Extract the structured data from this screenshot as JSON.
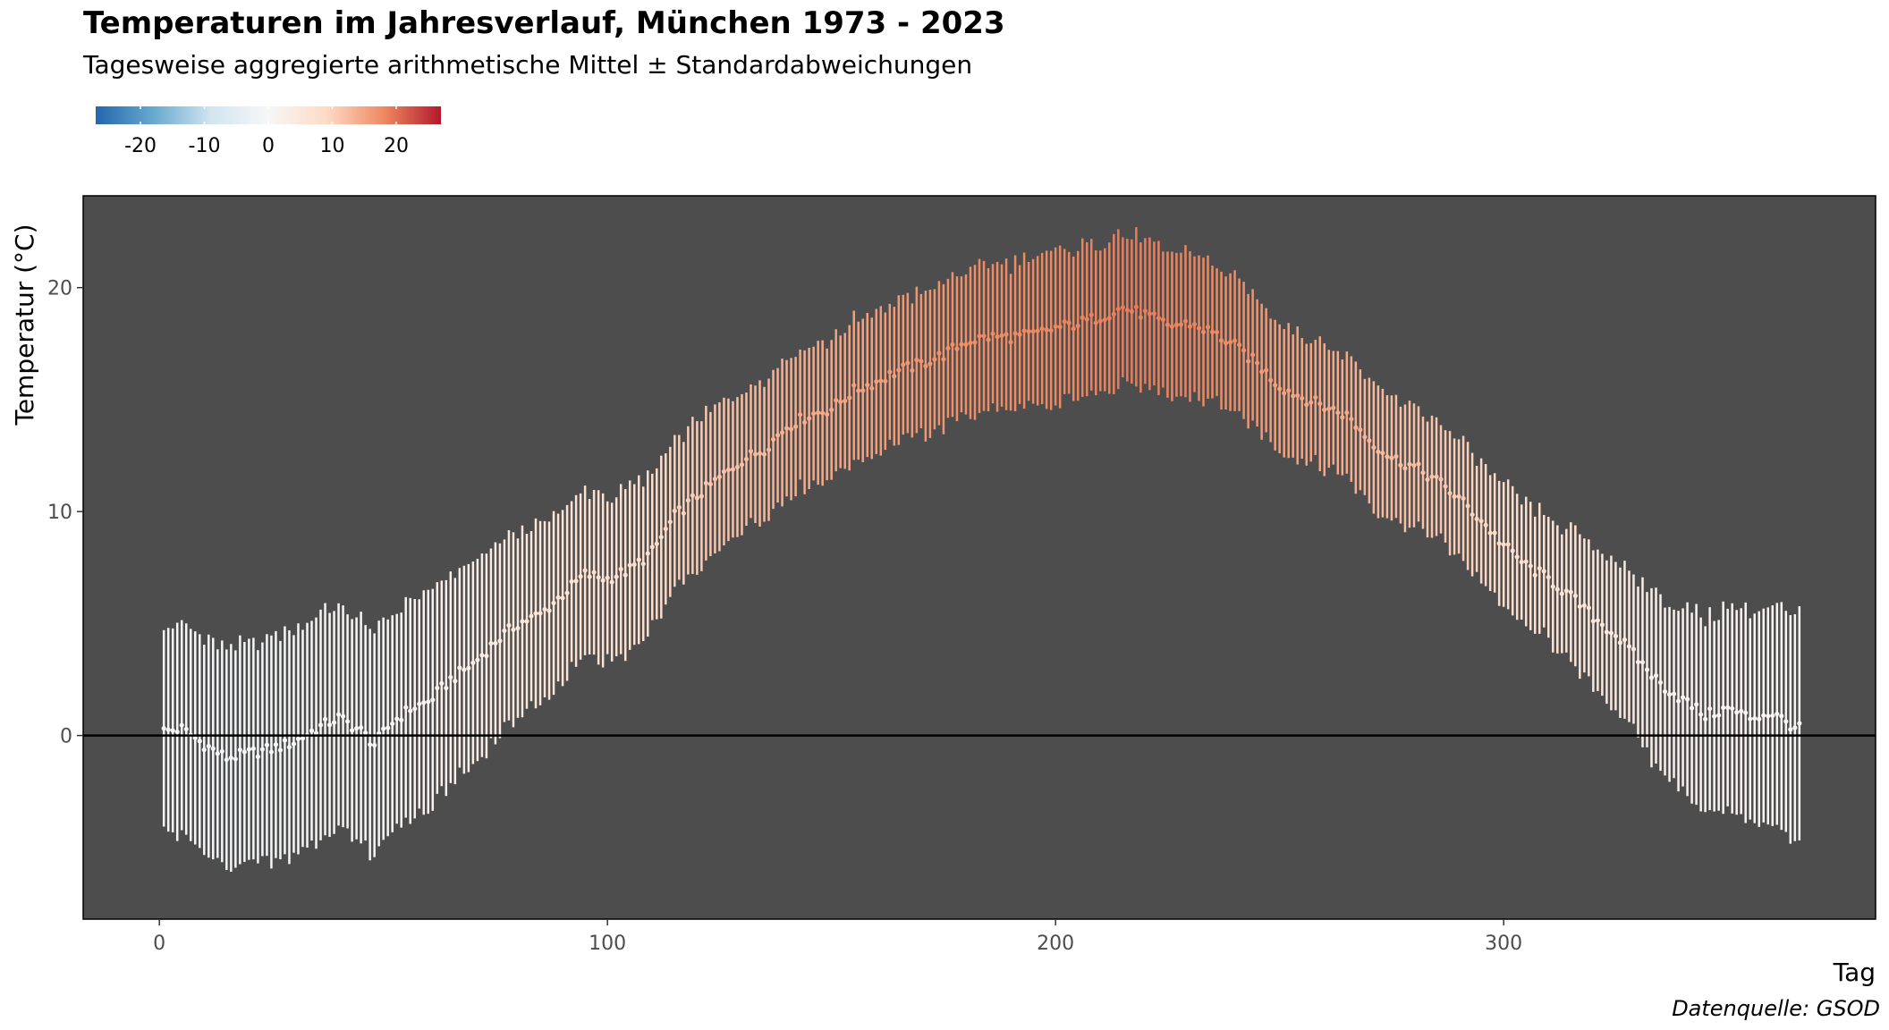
{
  "chart_data": {
    "type": "errorbar",
    "title": "Temperaturen im Jahresverlauf, München 1973 - 2023",
    "subtitle": "Tagesweise aggregierte arithmetische Mittel ± Standardabweichungen",
    "xlabel": "Tag",
    "ylabel": "Temperatur (°C)",
    "caption": "Datenquelle: GSOD",
    "xlim": [
      -17,
      383
    ],
    "ylim": [
      -8.2,
      24.1
    ],
    "x_ticks": [
      0,
      100,
      200,
      300
    ],
    "y_ticks": [
      0,
      10,
      20
    ],
    "reference_line_y": 0,
    "grid": false,
    "panel_background": "#4d4d4d",
    "legend": {
      "position": "top-left",
      "type": "colorbar",
      "range": [
        -27,
        27
      ],
      "ticks": [
        -20,
        -10,
        0,
        10,
        20
      ],
      "colors": [
        "#2166ac",
        "#67a9cf",
        "#d1e5f0",
        "#f7f7f7",
        "#fddbc7",
        "#ef8a62",
        "#b2182b"
      ]
    },
    "mean_anchors": [
      [
        1,
        0.2
      ],
      [
        5,
        0.3
      ],
      [
        10,
        -0.4
      ],
      [
        15,
        -1.0
      ],
      [
        20,
        -0.8
      ],
      [
        25,
        -0.6
      ],
      [
        30,
        -0.3
      ],
      [
        35,
        0.3
      ],
      [
        40,
        0.8
      ],
      [
        45,
        0.2
      ],
      [
        48,
        -0.4
      ],
      [
        52,
        0.6
      ],
      [
        56,
        1.2
      ],
      [
        60,
        1.5
      ],
      [
        65,
        2.5
      ],
      [
        70,
        3.2
      ],
      [
        75,
        4.2
      ],
      [
        80,
        5.0
      ],
      [
        85,
        5.4
      ],
      [
        90,
        6.3
      ],
      [
        95,
        7.2
      ],
      [
        100,
        7.0
      ],
      [
        105,
        7.4
      ],
      [
        110,
        8.2
      ],
      [
        115,
        9.8
      ],
      [
        120,
        10.7
      ],
      [
        125,
        11.5
      ],
      [
        130,
        12.3
      ],
      [
        135,
        12.8
      ],
      [
        140,
        13.8
      ],
      [
        145,
        14.3
      ],
      [
        150,
        14.6
      ],
      [
        155,
        15.4
      ],
      [
        160,
        15.8
      ],
      [
        165,
        16.3
      ],
      [
        170,
        16.6
      ],
      [
        175,
        17.0
      ],
      [
        180,
        17.6
      ],
      [
        185,
        17.8
      ],
      [
        190,
        17.8
      ],
      [
        195,
        17.9
      ],
      [
        200,
        18.2
      ],
      [
        205,
        18.4
      ],
      [
        210,
        18.7
      ],
      [
        215,
        19.1
      ],
      [
        220,
        18.8
      ],
      [
        225,
        18.3
      ],
      [
        230,
        18.4
      ],
      [
        235,
        18.0
      ],
      [
        240,
        17.4
      ],
      [
        245,
        16.6
      ],
      [
        250,
        15.6
      ],
      [
        255,
        15.1
      ],
      [
        260,
        14.7
      ],
      [
        265,
        14.3
      ],
      [
        270,
        13.2
      ],
      [
        275,
        12.4
      ],
      [
        280,
        12.0
      ],
      [
        285,
        11.4
      ],
      [
        290,
        10.6
      ],
      [
        295,
        9.6
      ],
      [
        300,
        8.5
      ],
      [
        305,
        7.6
      ],
      [
        310,
        7.0
      ],
      [
        315,
        6.2
      ],
      [
        320,
        5.3
      ],
      [
        325,
        4.5
      ],
      [
        330,
        3.4
      ],
      [
        335,
        2.3
      ],
      [
        340,
        1.6
      ],
      [
        345,
        0.9
      ],
      [
        350,
        1.2
      ],
      [
        355,
        0.8
      ],
      [
        360,
        1.0
      ],
      [
        363,
        0.6
      ],
      [
        366,
        0.3
      ]
    ],
    "sd_anchors": [
      [
        1,
        4.6
      ],
      [
        30,
        5.1
      ],
      [
        60,
        4.8
      ],
      [
        90,
        3.8
      ],
      [
        110,
        3.5
      ],
      [
        130,
        3.2
      ],
      [
        150,
        3.1
      ],
      [
        180,
        3.2
      ],
      [
        200,
        3.4
      ],
      [
        220,
        3.3
      ],
      [
        240,
        3.0
      ],
      [
        260,
        2.8
      ],
      [
        290,
        2.6
      ],
      [
        310,
        2.7
      ],
      [
        330,
        3.6
      ],
      [
        350,
        4.6
      ],
      [
        366,
        5.0
      ]
    ]
  }
}
